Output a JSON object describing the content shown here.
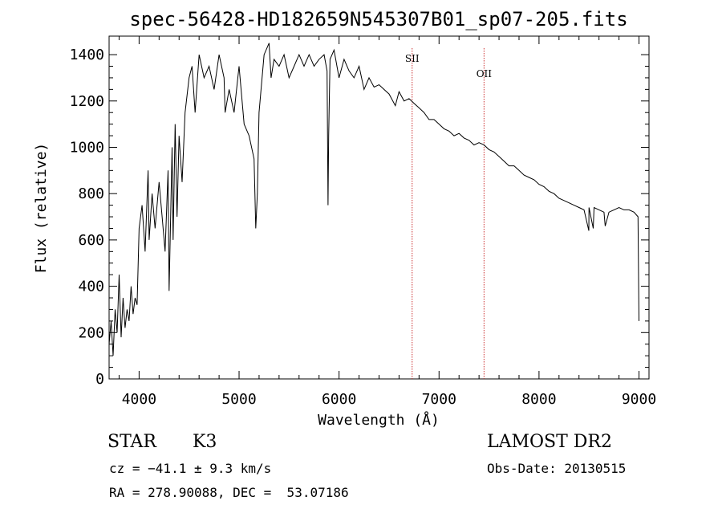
{
  "chart_data": {
    "type": "line",
    "title": "spec-56428-HD182659N545307B01_sp07-205.fits",
    "xlabel": "Wavelength (Å)",
    "ylabel": "Flux (relative)",
    "xlim": [
      3700,
      9100
    ],
    "ylim": [
      0,
      1480
    ],
    "xticks": [
      4000,
      5000,
      6000,
      7000,
      8000,
      9000
    ],
    "yticks": [
      0,
      200,
      400,
      600,
      800,
      1000,
      1200,
      1400
    ],
    "grid": false,
    "lines": [
      {
        "label": "SII",
        "x": 6731,
        "color": "#cc3333"
      },
      {
        "label": "OII",
        "x": 7450,
        "color": "#cc3333"
      }
    ],
    "series": [
      {
        "color": "#000000",
        "x": [
          3700,
          3720,
          3740,
          3760,
          3780,
          3800,
          3820,
          3840,
          3860,
          3880,
          3900,
          3920,
          3940,
          3960,
          3980,
          4000,
          4030,
          4060,
          4090,
          4100,
          4130,
          4160,
          4200,
          4230,
          4260,
          4290,
          4300,
          4330,
          4340,
          4360,
          4380,
          4400,
          4430,
          4460,
          4500,
          4530,
          4560,
          4600,
          4650,
          4700,
          4750,
          4800,
          4850,
          4860,
          4900,
          4950,
          5000,
          5050,
          5100,
          5150,
          5167,
          5172,
          5183,
          5200,
          5250,
          5300,
          5320,
          5350,
          5400,
          5450,
          5500,
          5550,
          5600,
          5650,
          5700,
          5750,
          5800,
          5850,
          5880,
          5890,
          5896,
          5910,
          5950,
          6000,
          6050,
          6100,
          6150,
          6200,
          6250,
          6300,
          6350,
          6400,
          6450,
          6500,
          6563,
          6600,
          6650,
          6700,
          6750,
          6800,
          6850,
          6900,
          6950,
          7000,
          7050,
          7100,
          7150,
          7200,
          7250,
          7300,
          7350,
          7400,
          7450,
          7500,
          7550,
          7600,
          7650,
          7700,
          7750,
          7800,
          7850,
          7900,
          7950,
          8000,
          8050,
          8100,
          8150,
          8200,
          8250,
          8300,
          8350,
          8400,
          8450,
          8498,
          8500,
          8542,
          8550,
          8600,
          8650,
          8662,
          8700,
          8750,
          8800,
          8850,
          8900,
          8950,
          8990,
          9000
        ],
        "y": [
          150,
          250,
          100,
          300,
          200,
          450,
          180,
          350,
          220,
          300,
          250,
          400,
          280,
          350,
          320,
          650,
          750,
          550,
          900,
          600,
          800,
          650,
          850,
          700,
          550,
          900,
          380,
          1000,
          600,
          1100,
          700,
          1050,
          850,
          1150,
          1300,
          1350,
          1150,
          1400,
          1300,
          1350,
          1250,
          1400,
          1300,
          1150,
          1250,
          1150,
          1350,
          1100,
          1050,
          950,
          650,
          700,
          800,
          1150,
          1400,
          1450,
          1300,
          1380,
          1350,
          1400,
          1300,
          1350,
          1400,
          1350,
          1400,
          1350,
          1380,
          1400,
          1330,
          750,
          1050,
          1380,
          1420,
          1300,
          1380,
          1330,
          1300,
          1350,
          1250,
          1300,
          1260,
          1270,
          1250,
          1230,
          1180,
          1240,
          1200,
          1210,
          1190,
          1170,
          1150,
          1120,
          1120,
          1100,
          1080,
          1070,
          1050,
          1060,
          1040,
          1030,
          1010,
          1020,
          1010,
          990,
          980,
          960,
          940,
          920,
          920,
          900,
          880,
          870,
          860,
          840,
          830,
          810,
          800,
          780,
          770,
          760,
          750,
          740,
          730,
          640,
          740,
          650,
          740,
          730,
          720,
          660,
          720,
          730,
          740,
          730,
          730,
          720,
          700,
          250
        ]
      }
    ]
  },
  "info": {
    "object_type": "STAR",
    "subclass": "K3",
    "survey": "LAMOST DR2",
    "cz": "cz = −41.1 ± 9.3 km/s",
    "obs_date": "Obs-Date: 20130515",
    "coords": "RA = 278.90088, DEC =  53.07186"
  }
}
